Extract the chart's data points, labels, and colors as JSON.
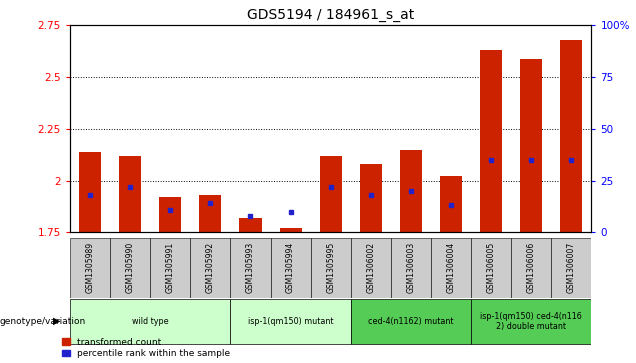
{
  "title": "GDS5194 / 184961_s_at",
  "samples": [
    "GSM1305989",
    "GSM1305990",
    "GSM1305991",
    "GSM1305992",
    "GSM1305993",
    "GSM1305994",
    "GSM1305995",
    "GSM1306002",
    "GSM1306003",
    "GSM1306004",
    "GSM1306005",
    "GSM1306006",
    "GSM1306007"
  ],
  "transformed_count": [
    2.14,
    2.12,
    1.92,
    1.93,
    1.82,
    1.77,
    2.12,
    2.08,
    2.15,
    2.02,
    2.63,
    2.59,
    2.68
  ],
  "percentile_rank": [
    18,
    22,
    11,
    14,
    8,
    10,
    22,
    18,
    20,
    13,
    35,
    35,
    35
  ],
  "ylim_left": [
    1.75,
    2.75
  ],
  "ylim_right": [
    0,
    100
  ],
  "yticks_left": [
    1.75,
    2.0,
    2.25,
    2.5,
    2.75
  ],
  "yticks_right": [
    0,
    25,
    50,
    75,
    100
  ],
  "ytick_labels_left": [
    "1.75",
    "2",
    "2.25",
    "2.5",
    "2.75"
  ],
  "ytick_labels_right": [
    "0",
    "25",
    "50",
    "75",
    "100%"
  ],
  "bar_color": "#cc2200",
  "dot_color": "#2222cc",
  "bar_bottom": 1.75,
  "grid_values": [
    2.0,
    2.25,
    2.5
  ],
  "genotype_groups": [
    {
      "label": "wild type",
      "start": 0,
      "end": 3,
      "color": "#ccffcc"
    },
    {
      "label": "isp-1(qm150) mutant",
      "start": 4,
      "end": 6,
      "color": "#ccffcc"
    },
    {
      "label": "ced-4(n1162) mutant",
      "start": 7,
      "end": 9,
      "color": "#55cc55"
    },
    {
      "label": "isp-1(qm150) ced-4(n116\n2) double mutant",
      "start": 10,
      "end": 12,
      "color": "#55cc55"
    }
  ],
  "legend_transformed": "transformed count",
  "legend_percentile": "percentile rank within the sample",
  "genotype_label": "genotype/variation",
  "bar_width": 0.55,
  "sample_box_color": "#cccccc",
  "fig_bg_color": "#ffffff"
}
